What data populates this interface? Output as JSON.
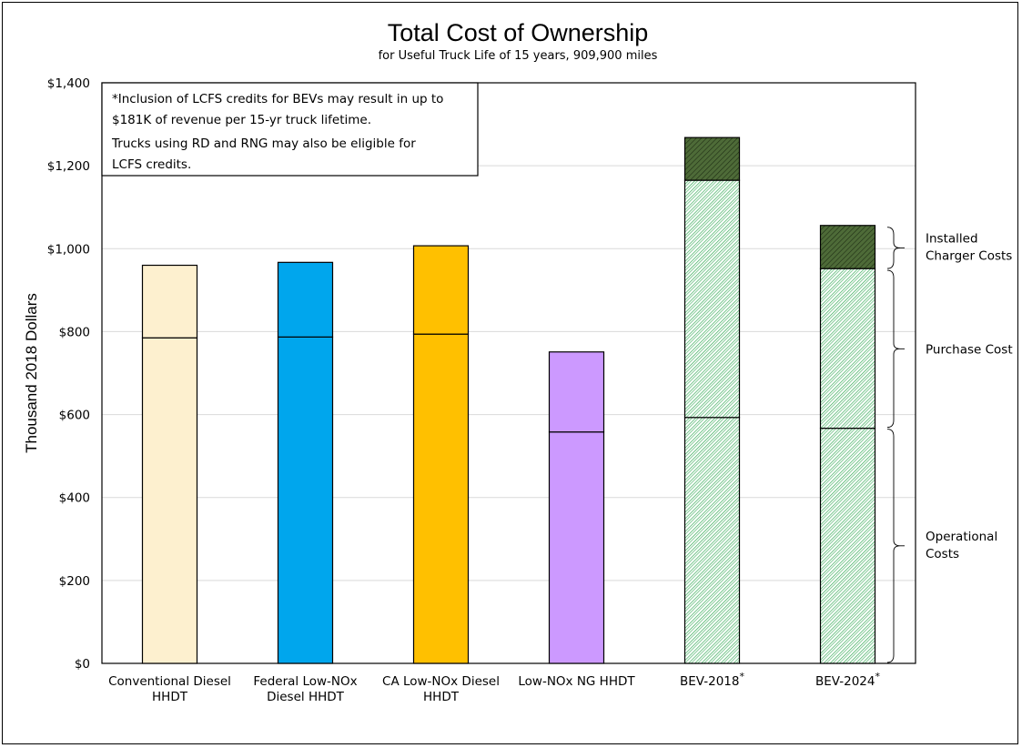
{
  "chart_data": {
    "type": "bar",
    "stacked": true,
    "title": "Total Cost of Ownership",
    "subtitle": "for Useful Truck Life of 15 years, 909,900 miles",
    "ylabel": "Thousand 2018 Dollars",
    "ylim": [
      0,
      1400
    ],
    "yticks": [
      "$0",
      "$200",
      "$400",
      "$600",
      "$800",
      "$1,000",
      "$1,200",
      "$1,400"
    ],
    "ytick_values": [
      0,
      200,
      400,
      600,
      800,
      1000,
      1200,
      1400
    ],
    "grid": true,
    "categories": [
      {
        "line1": "Conventional Diesel",
        "line2": "HHDT",
        "marker": ""
      },
      {
        "line1": "Federal Low-NOx",
        "line2": "Diesel HHDT",
        "marker": ""
      },
      {
        "line1": "CA Low-NOx Diesel",
        "line2": "HHDT",
        "marker": ""
      },
      {
        "line1": "Low-NOx NG HHDT",
        "line2": "",
        "marker": ""
      },
      {
        "line1": "BEV-2018",
        "line2": "",
        "marker": "*"
      },
      {
        "line1": "BEV-2024",
        "line2": "",
        "marker": "*"
      }
    ],
    "series": [
      {
        "name": "Operational Costs",
        "values": [
          785,
          787,
          794,
          558,
          593,
          567
        ]
      },
      {
        "name": "Purchase Cost",
        "values": [
          175,
          180,
          213,
          193,
          572,
          385
        ]
      },
      {
        "name": "Installed Charger Costs",
        "values": [
          0,
          0,
          0,
          0,
          103,
          104
        ]
      }
    ],
    "colors": {
      "bars": [
        "#fdf0cf",
        "#00a6ed",
        "#ffc000",
        "#cc99ff",
        "#ffffff",
        "#ffffff"
      ],
      "bev_hatch": "#3aad5a",
      "charger_fill": "#4e6b38"
    },
    "note": {
      "line1": "*Inclusion of LCFS credits for BEVs may result in up to",
      "line2": "$181K of revenue per 15-yr truck lifetime.",
      "line3": "Trucks using RD and RNG may also be eligible for",
      "line4": "LCFS credits."
    },
    "brackets": [
      {
        "line1": "Installed",
        "line2": "Charger Costs",
        "from": 950,
        "to": 1054
      },
      {
        "line1": "Purchase Cost",
        "line2": "",
        "from": 567,
        "to": 950
      },
      {
        "line1": "Operational",
        "line2": "Costs",
        "from": 0,
        "to": 567
      }
    ]
  }
}
